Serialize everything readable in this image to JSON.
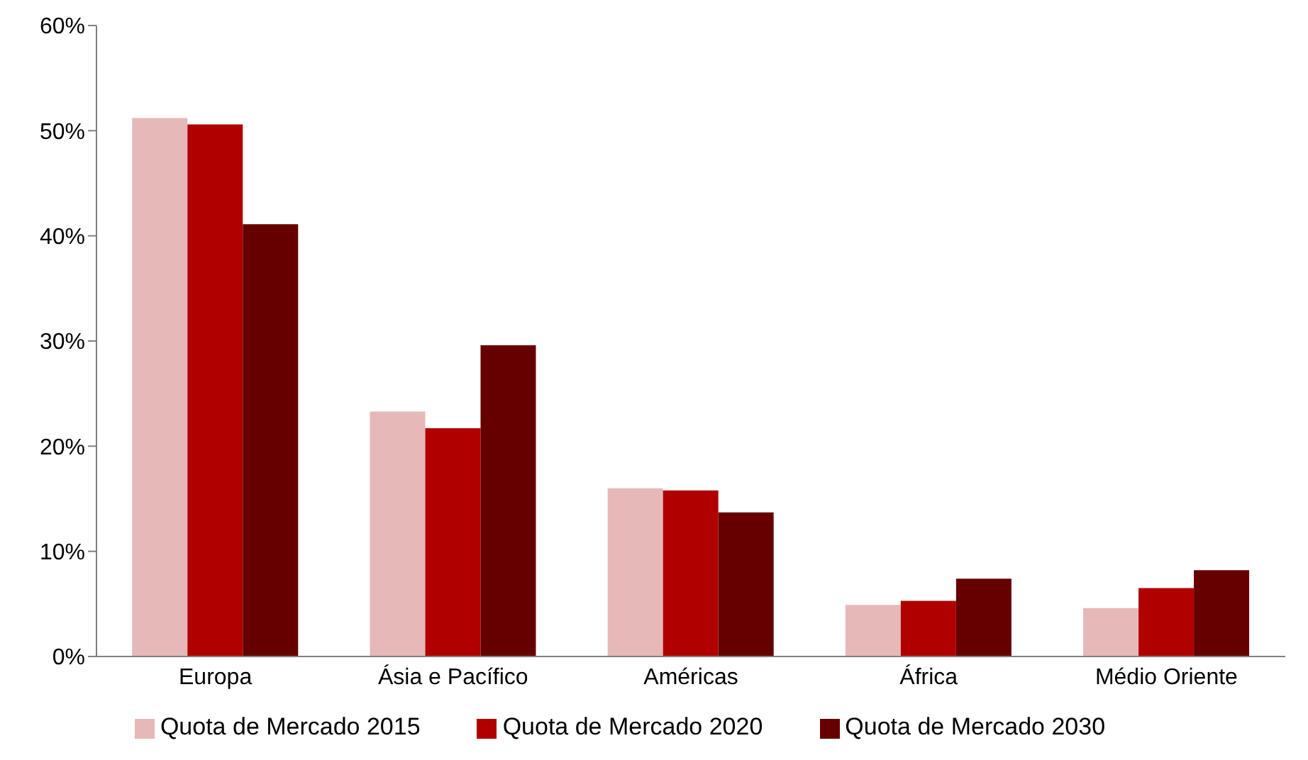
{
  "chart_data": {
    "type": "bar",
    "categories": [
      "Europa",
      "Ásia e Pacífico",
      "Américas",
      "África",
      "Médio Oriente"
    ],
    "series": [
      {
        "name": "Quota de Mercado 2015",
        "color": "#e6b8b7",
        "values": [
          51.2,
          23.3,
          16.0,
          4.9,
          4.6
        ]
      },
      {
        "name": "Quota de Mercado 2020",
        "color": "#b00000",
        "values": [
          50.6,
          21.7,
          15.8,
          5.3,
          6.5
        ]
      },
      {
        "name": "Quota de Mercado 2030",
        "color": "#660000",
        "values": [
          41.1,
          29.6,
          13.7,
          7.4,
          8.2
        ]
      }
    ],
    "ylim": [
      0,
      60
    ],
    "yticks": [
      {
        "value": 0,
        "label": "0%"
      },
      {
        "value": 10,
        "label": "10%"
      },
      {
        "value": 20,
        "label": "20%"
      },
      {
        "value": 30,
        "label": "30%"
      },
      {
        "value": 40,
        "label": "40%"
      },
      {
        "value": 50,
        "label": "50%"
      },
      {
        "value": 60,
        "label": "60%"
      }
    ],
    "grid": false,
    "legend": "bottom"
  }
}
